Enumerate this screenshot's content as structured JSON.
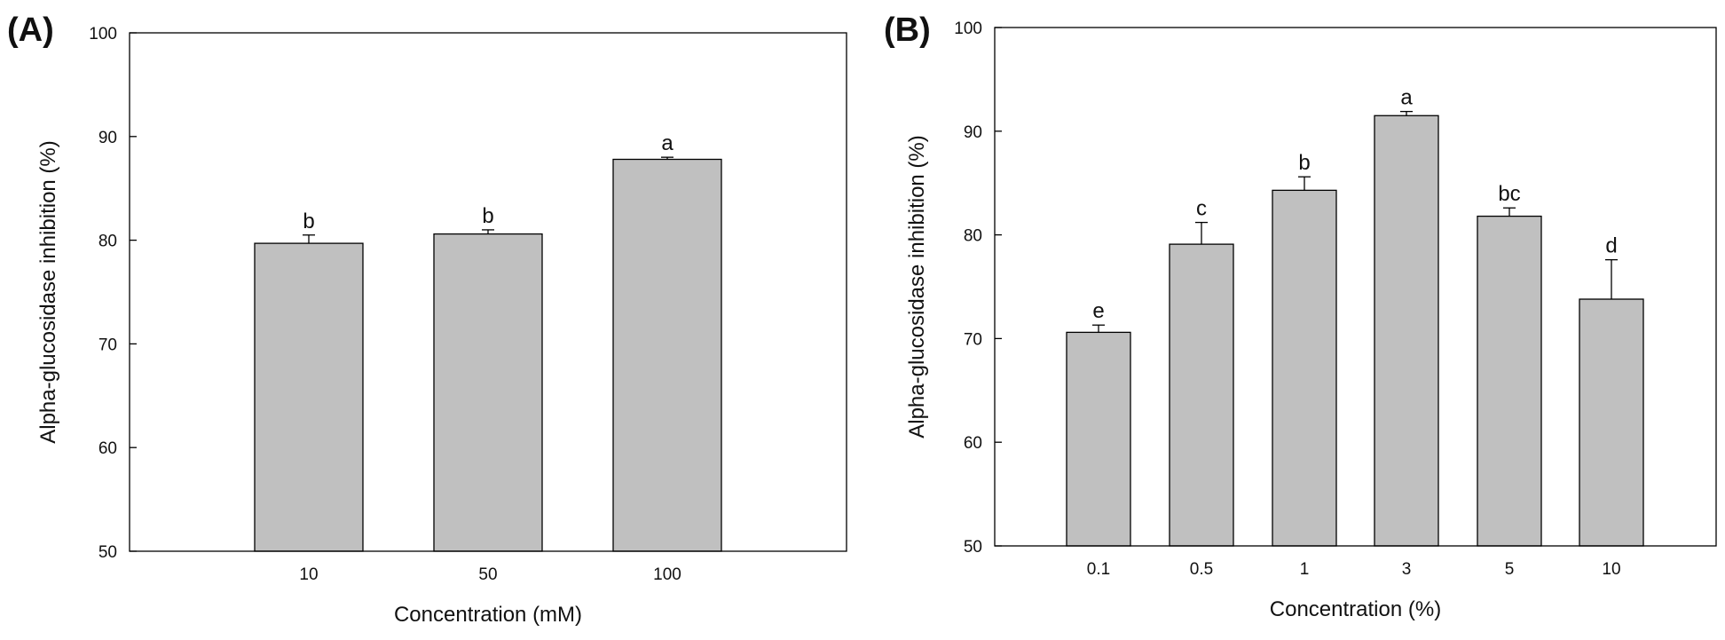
{
  "chart_data": [
    {
      "type": "bar",
      "panel_label": "(A)",
      "categories": [
        "10",
        "50",
        "100"
      ],
      "values": [
        79.7,
        80.6,
        87.8
      ],
      "errors": [
        0.8,
        0.4,
        0.2
      ],
      "significance": [
        "b",
        "b",
        "a"
      ],
      "xlabel": "Concentration (mM)",
      "ylabel": "Alpha-glucosidase inhibition (%)",
      "ylim": [
        50,
        100
      ],
      "yticks": [
        50,
        60,
        70,
        80,
        90,
        100
      ],
      "bar_color": "#c0c0c0",
      "grid": false
    },
    {
      "type": "bar",
      "panel_label": "(B)",
      "categories": [
        "0.1",
        "0.5",
        "1",
        "3",
        "5",
        "10"
      ],
      "values": [
        70.6,
        79.1,
        84.3,
        91.5,
        81.8,
        73.8
      ],
      "errors": [
        0.7,
        2.1,
        1.3,
        0.4,
        0.8,
        3.8
      ],
      "significance": [
        "e",
        "c",
        "b",
        "a",
        "bc",
        "d"
      ],
      "xlabel": "Concentration (%)",
      "ylabel": "Alpha-glucosidase inhibition (%)",
      "ylim": [
        50,
        100
      ],
      "yticks": [
        50,
        60,
        70,
        80,
        90,
        100
      ],
      "bar_color": "#c0c0c0",
      "grid": false
    }
  ]
}
